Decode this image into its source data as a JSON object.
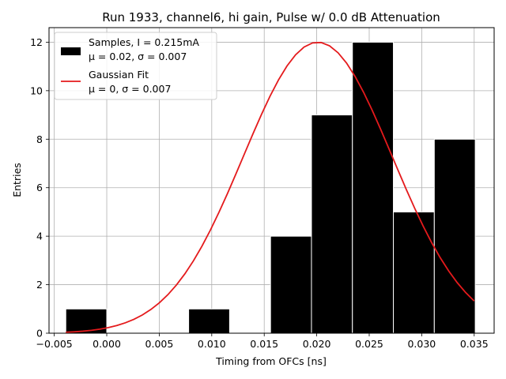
{
  "chart_data": {
    "type": "bar",
    "title": "Run 1933, channel6, hi gain, Pulse w/ 0.0 dB Attenuation",
    "xlabel": "Timing from OFCs [ns]",
    "ylabel": "Entries",
    "xlim": [
      -0.0055,
      0.0369
    ],
    "ylim": [
      0,
      12.6
    ],
    "xticks": [
      -0.005,
      0.0,
      0.005,
      0.01,
      0.015,
      0.02,
      0.025,
      0.03,
      0.035
    ],
    "xtick_labels": [
      "−0.005",
      "0.000",
      "0.005",
      "0.010",
      "0.015",
      "0.020",
      "0.025",
      "0.030",
      "0.035"
    ],
    "yticks": [
      0,
      2,
      4,
      6,
      8,
      10,
      12
    ],
    "ytick_labels": [
      "0",
      "2",
      "4",
      "6",
      "8",
      "10",
      "12"
    ],
    "grid": true,
    "legend_position": "top-left",
    "histogram": {
      "label": "Samples, I = 0.215mA",
      "label_line2": "μ = 0.02, σ = 0.007",
      "color": "#000000",
      "edge_color": "#ffffff",
      "bin_edges": [
        -0.0039,
        0.0,
        0.0039,
        0.0078,
        0.0117,
        0.0156,
        0.0195,
        0.0234,
        0.0273,
        0.0312,
        0.0351
      ],
      "counts": [
        1,
        0,
        0,
        1,
        0,
        4,
        9,
        12,
        5,
        8
      ]
    },
    "gaussian_fit": {
      "label": "Gaussian Fit",
      "label_line2": "μ = 0, σ = 0.007",
      "color": "#e41a1c",
      "amplitude": 12.0,
      "mean": 0.0201,
      "sigma": 0.0071,
      "x_range": [
        -0.0039,
        0.035
      ]
    }
  }
}
